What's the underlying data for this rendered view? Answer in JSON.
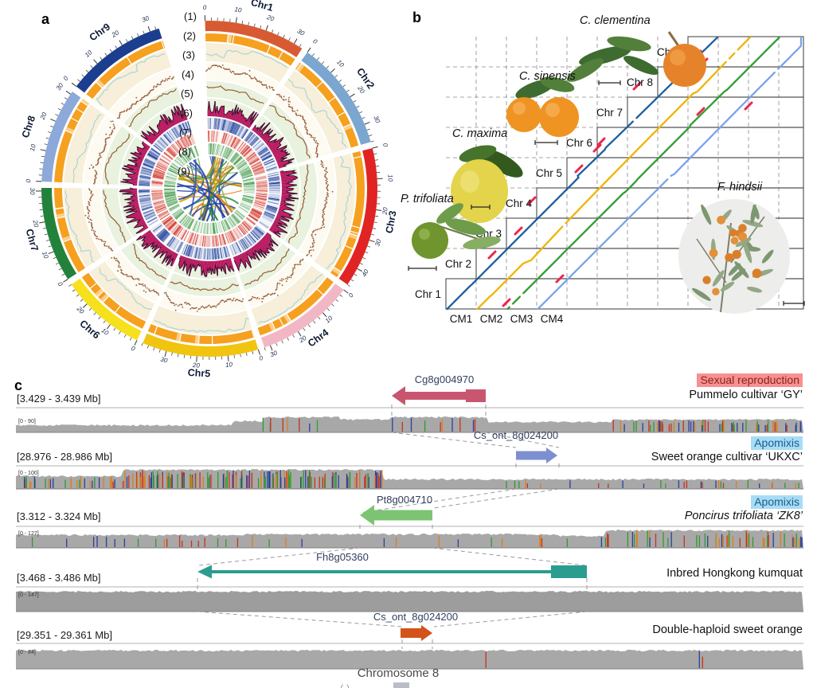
{
  "panel_a": {
    "label": "a",
    "ring_numbers": [
      "(1)",
      "(2)",
      "(3)",
      "(4)",
      "(5)",
      "(6)",
      "(7)",
      "(8)",
      "(9)"
    ],
    "chromosomes": [
      {
        "name": "Chr1",
        "length_mb": 33,
        "color": "#d85a33"
      },
      {
        "name": "Chr2",
        "length_mb": 36,
        "color": "#7aa6cf"
      },
      {
        "name": "Chr3",
        "length_mb": 46,
        "color": "#e02423"
      },
      {
        "name": "Chr4",
        "length_mb": 32,
        "color": "#f2b7c5"
      },
      {
        "name": "Chr5",
        "length_mb": 38,
        "color": "#f1c40f"
      },
      {
        "name": "Chr6",
        "length_mb": 28,
        "color": "#f7e01c"
      },
      {
        "name": "Chr7",
        "length_mb": 31,
        "color": "#22823b"
      },
      {
        "name": "Chr8",
        "length_mb": 31,
        "color": "#8ca9da"
      },
      {
        "name": "Chr9",
        "length_mb": 33,
        "color": "#1b3e8f"
      }
    ],
    "tick_interval_mb": 10,
    "ring2_color": "#f6a01f",
    "line3_color": "#a5d3d8",
    "scatter4_color": "#8a4a28",
    "line5_color": "#9a5a32",
    "hist6_color": "#b8135c",
    "heat7_color": "#1c3f9b",
    "heat8_color": "#cf2a1b",
    "heat9_color": "#2f8f35"
  },
  "panel_b": {
    "label": "b",
    "species": [
      {
        "name": "C. clementina"
      },
      {
        "name": "C. sinensis"
      },
      {
        "name": "C. maxima"
      },
      {
        "name": "P. trifoliata"
      },
      {
        "name": "F. hindsii"
      }
    ],
    "y_labels": [
      "Chr 1",
      "Chr 2",
      "Chr 3",
      "Chr 4",
      "Chr 5",
      "Chr 6",
      "Chr 7",
      "Chr 8",
      "Chr 9"
    ],
    "x_labels": [
      "CM1",
      "CM2",
      "CM3",
      "CM4"
    ],
    "trace_colors": [
      "#1c5f9e",
      "#f0b400",
      "#2f9e33",
      "#7aa3e8"
    ],
    "highlight_color": "#e8274b"
  },
  "panel_c": {
    "label": "c",
    "x_axis_label": "Chromosome 8",
    "truncated_fragment": "( )",
    "tracks": [
      {
        "region": "[3.429 - 3.439 Mb]",
        "coverage_range": "[0 - 90]",
        "gene": "Cg8g004970",
        "gene_color": "#c9566f",
        "arrow_direction": "left",
        "genome": "Pummelo cultivar ‘GY’",
        "badge": "Sexual reproduction",
        "badge_bg": "#f79090",
        "badge_text": "#8b1f1f"
      },
      {
        "region": "[28.976 - 28.986 Mb]",
        "coverage_range": "[0 - 100]",
        "gene": "Cs_ont_8g024200",
        "gene_color": "#7c8fd0",
        "arrow_direction": "right",
        "genome": "Sweet orange cultivar ‘UKXC’",
        "badge": "Apomixis",
        "badge_bg": "#a8dcf5",
        "badge_text": "#175e8e"
      },
      {
        "region": "[3.312 - 3.324 Mb]",
        "coverage_range": "[0 - 127]",
        "gene": "Pt8g004710",
        "gene_color": "#7cc474",
        "arrow_direction": "left",
        "genome": "Poncirus trifoliata ‘ZK8’",
        "genome_italic": true,
        "badge": "Apomixis",
        "badge_bg": "#a8dcf5",
        "badge_text": "#175e8e"
      },
      {
        "region": "[3.468 - 3.486 Mb]",
        "coverage_range": "[0 - 147]",
        "gene": "Fh8g05360",
        "gene_color": "#2a9d8f",
        "arrow_direction": "left",
        "genome": "Inbred Hongkong kumquat",
        "badge": null
      },
      {
        "region": "[29.351 - 29.361 Mb]",
        "coverage_range": "[0 - 84]",
        "gene": "Cs_ont_8g024200",
        "gene_color": "#d4531c",
        "arrow_direction": "right",
        "genome": "Double-haploid sweet orange",
        "badge": null
      }
    ]
  },
  "chart_data": [
    {
      "type": "other",
      "subtype": "circos-genome-overview",
      "panel": "a",
      "categories": [
        "Chr1",
        "Chr2",
        "Chr3",
        "Chr4",
        "Chr5",
        "Chr6",
        "Chr7",
        "Chr8",
        "Chr9"
      ],
      "chromosome_lengths_mb": [
        33,
        36,
        46,
        32,
        38,
        28,
        31,
        31,
        33
      ],
      "tick_interval_mb": 10,
      "rings": [
        {
          "id": "(1)",
          "content": "chromosome ideogram with Mb scale ticks"
        },
        {
          "id": "(2)",
          "content": "orange segmented track"
        },
        {
          "id": "(3)",
          "content": "light-blue line track on cream band"
        },
        {
          "id": "(4)",
          "content": "brown scatter-dot track"
        },
        {
          "id": "(5)",
          "content": "brown line track on pale-green band"
        },
        {
          "id": "(6)",
          "content": "magenta histogram track with dark outline"
        },
        {
          "id": "(7)",
          "content": "blue heatmap track"
        },
        {
          "id": "(8)",
          "content": "red heatmap track"
        },
        {
          "id": "(9)",
          "content": "green heatmap track"
        }
      ],
      "center": "multicolored syntenic link ribbons (blue, green, yellow, orange)"
    },
    {
      "type": "scatter",
      "subtype": "synteny-dot-plot",
      "panel": "b",
      "x_categories": [
        "CM1",
        "CM2",
        "CM3",
        "CM4"
      ],
      "y_categories": [
        "Chr 1",
        "Chr 2",
        "Chr 3",
        "Chr 4",
        "Chr 5",
        "Chr 6",
        "Chr 7",
        "Chr 8",
        "Chr 9"
      ],
      "series": [
        {
          "name": "alignment trace 1",
          "color": "#1c5f9e",
          "shape": "diagonal collinear trace"
        },
        {
          "name": "alignment trace 2",
          "color": "#f0b400",
          "shape": "diagonal collinear trace"
        },
        {
          "name": "alignment trace 3",
          "color": "#2f9e33",
          "shape": "diagonal collinear trace"
        },
        {
          "name": "alignment trace 4",
          "color": "#7aa3e8",
          "shape": "diagonal collinear trace"
        }
      ],
      "annotations": {
        "rearrangement_marks_color": "#e8274b",
        "species_pictured": [
          "C. clementina",
          "C. sinensis",
          "C. maxima",
          "P. trifoliata",
          "F. hindsii"
        ]
      },
      "grid": "dashed chromosome grid with solid staircase boxes"
    },
    {
      "type": "other",
      "subtype": "read-coverage-genome-tracks",
      "panel": "c",
      "xlabel": "Chromosome 8",
      "tracks": [
        {
          "genome": "Pummelo cultivar ‘GY’",
          "region_mb": "[3.429 - 3.439 Mb]",
          "coverage_range": "[0 - 90]",
          "gene": "Cg8g004970",
          "gene_strand": "left",
          "phenotype": "Sexual reproduction"
        },
        {
          "genome": "Sweet orange cultivar ‘UKXC’",
          "region_mb": "[28.976 - 28.986 Mb]",
          "coverage_range": "[0 - 100]",
          "gene": "Cs_ont_8g024200",
          "gene_strand": "right",
          "phenotype": "Apomixis"
        },
        {
          "genome": "Poncirus trifoliata ‘ZK8’",
          "region_mb": "[3.312 - 3.324 Mb]",
          "coverage_range": "[0 - 127]",
          "gene": "Pt8g004710",
          "gene_strand": "left",
          "phenotype": "Apomixis"
        },
        {
          "genome": "Inbred Hongkong kumquat",
          "region_mb": "[3.468 - 3.486 Mb]",
          "coverage_range": "[0 - 147]",
          "gene": "Fh8g05360",
          "gene_strand": "left",
          "phenotype": null
        },
        {
          "genome": "Double-haploid sweet orange",
          "region_mb": "[29.351 - 29.361 Mb]",
          "coverage_range": "[0 - 84]",
          "gene": "Cs_ont_8g024200",
          "gene_strand": "right",
          "phenotype": null
        }
      ]
    }
  ]
}
